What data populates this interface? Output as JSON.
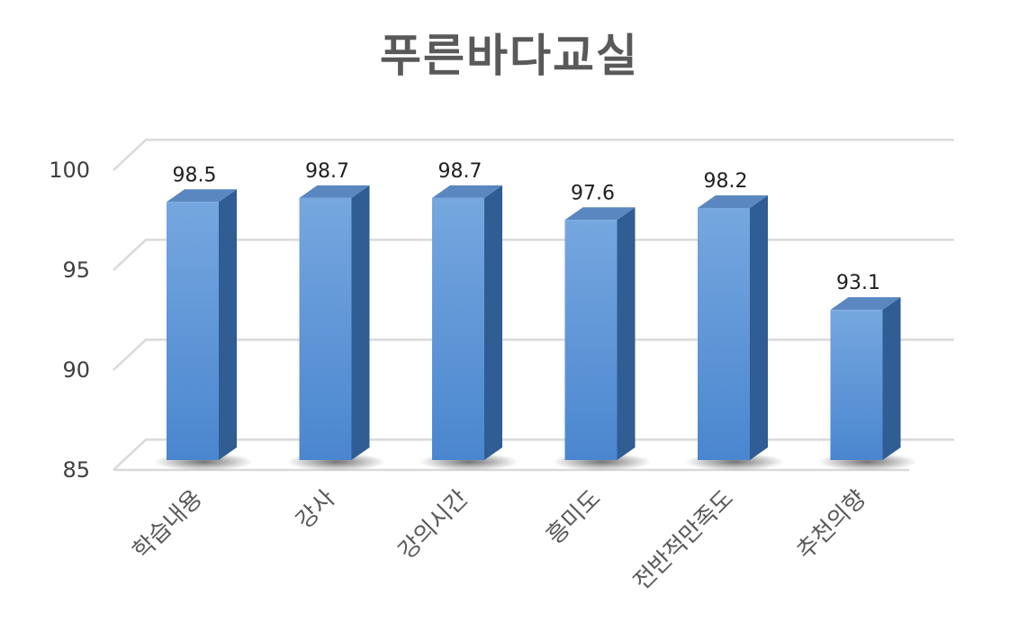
{
  "chart_data": {
    "type": "bar",
    "title": "푸른바다교실",
    "categories": [
      "학습내용",
      "강사",
      "강의시간",
      "흥미도",
      "전반적만족도",
      "추천의향"
    ],
    "values": [
      98.5,
      98.7,
      98.7,
      97.6,
      98.2,
      93.1
    ],
    "ylim": [
      85,
      100
    ],
    "yticks": [
      85,
      90,
      95,
      100
    ],
    "xlabel": "",
    "ylabel": "",
    "grid": true,
    "legend": "none",
    "style": "3d-column",
    "colors": {
      "bar_front_top": "#76a7df",
      "bar_front_bottom": "#4a86cf",
      "bar_side": "#2f5d94",
      "bar_top": "#5a87c0",
      "grid": "#d9d9d9",
      "title": "#595959"
    }
  }
}
